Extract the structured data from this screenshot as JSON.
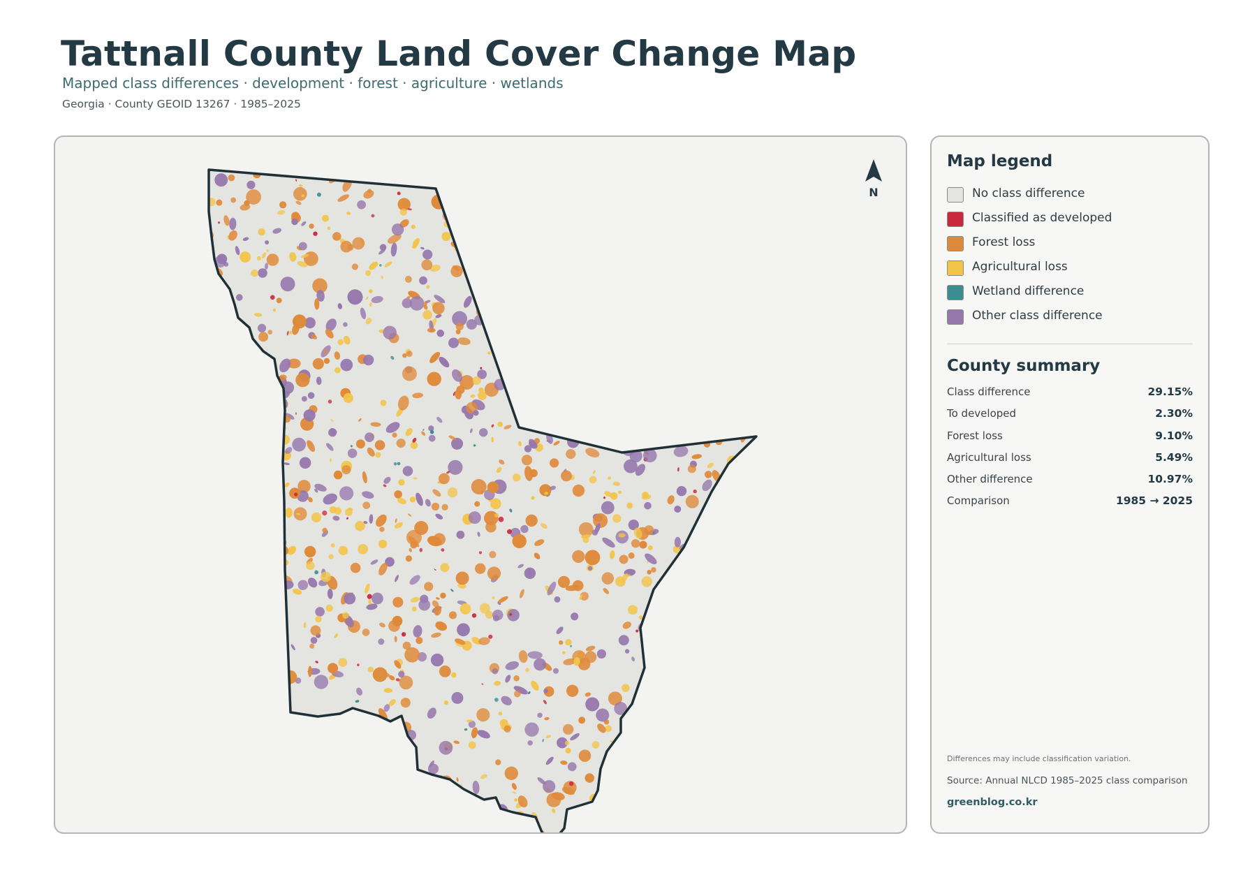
{
  "header": {
    "title": "Tattnall County Land Cover Change Map",
    "subtitle": "Mapped class differences · development · forest · agriculture · wetlands",
    "meta": "Georgia · County GEOID 13267 · 1985–2025"
  },
  "map": {
    "north_label": "N",
    "base_color": "#e4e5e1",
    "outline_color": "#1f3036"
  },
  "legend": {
    "title": "Map legend",
    "items": [
      {
        "label": "No class difference",
        "color": "#e4e4e2"
      },
      {
        "label": "Classified as developed",
        "color": "#c8283a"
      },
      {
        "label": "Forest loss",
        "color": "#df8a3a"
      },
      {
        "label": "Agricultural loss",
        "color": "#f2c44a"
      },
      {
        "label": "Wetland difference",
        "color": "#3d8c92"
      },
      {
        "label": "Other class difference",
        "color": "#9778ad"
      }
    ]
  },
  "summary": {
    "title": "County summary",
    "rows": [
      {
        "label": "Class difference",
        "value": "29.15%"
      },
      {
        "label": "To developed",
        "value": "2.30%"
      },
      {
        "label": "Forest loss",
        "value": "9.10%"
      },
      {
        "label": "Agricultural loss",
        "value": "5.49%"
      },
      {
        "label": "Other difference",
        "value": "10.97%"
      },
      {
        "label": "Comparison",
        "value": "1985 → 2025"
      }
    ]
  },
  "footer": {
    "note": "Differences may include classification variation.",
    "source": "Source: Annual NLCD 1985–2025 class comparison",
    "credit": "greenblog.co.kr"
  }
}
